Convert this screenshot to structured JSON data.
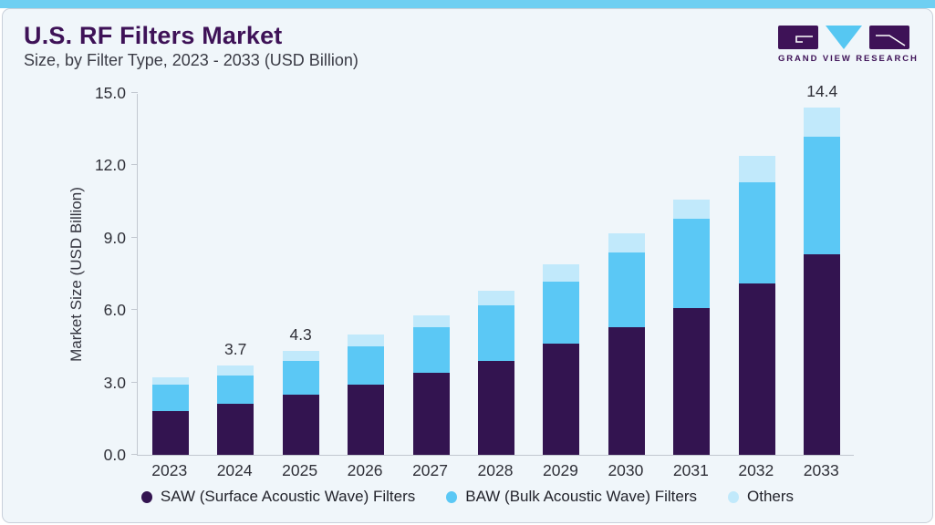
{
  "page": {
    "accent_bar_color": "#6fcff2",
    "card_background": "#f0f6fa",
    "card_border_color": "#c9d0da"
  },
  "header": {
    "title": "U.S. RF Filters Market",
    "subtitle": "Size, by Filter Type, 2023 - 2033 (USD Billion)",
    "title_color": "#3e1257"
  },
  "logo": {
    "text": "GRAND VIEW RESEARCH",
    "icon": "gvr-logo-icon",
    "dark_color": "#3e1257",
    "blue_color": "#56c7f2"
  },
  "chart_data": {
    "type": "bar",
    "stacked": true,
    "title": "U.S. RF Filters Market Size, by Filter Type, 2023 - 2033 (USD Billion)",
    "categories": [
      "2023",
      "2024",
      "2025",
      "2026",
      "2027",
      "2028",
      "2029",
      "2030",
      "2031",
      "2032",
      "2033"
    ],
    "series": [
      {
        "name": "SAW (Surface Acoustic Wave) Filters",
        "color": "#331450",
        "values": [
          1.8,
          2.1,
          2.5,
          2.9,
          3.4,
          3.9,
          4.6,
          5.3,
          6.1,
          7.1,
          8.3
        ]
      },
      {
        "name": "BAW (Bulk Acoustic Wave) Filters",
        "color": "#5bc8f5",
        "values": [
          1.1,
          1.2,
          1.4,
          1.6,
          1.9,
          2.3,
          2.6,
          3.1,
          3.7,
          4.2,
          4.9
        ]
      },
      {
        "name": "Others",
        "color": "#c1e9fb",
        "values": [
          0.3,
          0.4,
          0.4,
          0.5,
          0.5,
          0.6,
          0.7,
          0.8,
          0.8,
          1.1,
          1.2
        ]
      }
    ],
    "totals": [
      3.2,
      3.7,
      4.3,
      5.0,
      5.8,
      6.8,
      7.9,
      9.2,
      10.6,
      12.4,
      14.4
    ],
    "bar_labels": {
      "2024": "3.7",
      "2025": "4.3",
      "2033": "14.4"
    },
    "xlabel": "",
    "ylabel": "Market Size (USD Billion)",
    "ylim": [
      0,
      15
    ],
    "yticks": [
      0,
      3,
      6,
      9,
      12,
      15
    ],
    "ytick_labels": [
      "0.0",
      "3.0",
      "6.0",
      "9.0",
      "12.0",
      "15.0"
    ],
    "grid": false,
    "legend_position": "bottom"
  }
}
